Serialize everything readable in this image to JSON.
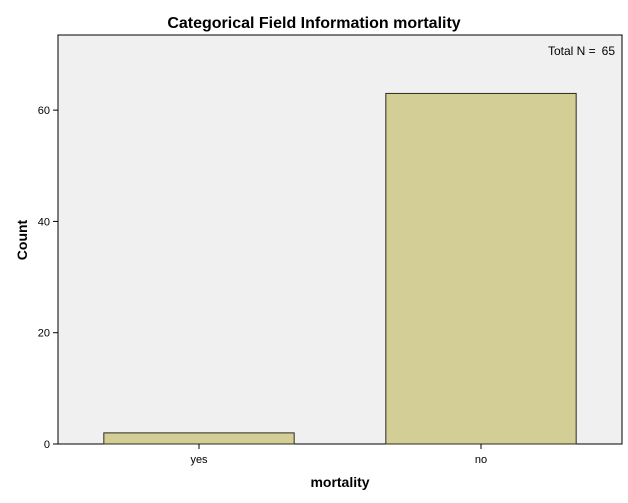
{
  "chart_data": {
    "type": "bar",
    "title": "Categorical Field Information mortality",
    "xlabel": "mortality",
    "ylabel": "Count",
    "categories": [
      "yes",
      "no"
    ],
    "values": [
      2,
      63
    ],
    "ylim": [
      0,
      73.5
    ],
    "yticks": [
      0,
      20,
      40,
      60
    ],
    "grid": false,
    "legend": "none",
    "annotation": {
      "label": "Total N =",
      "value": "65"
    },
    "colors": {
      "bar_fill": "#d3ce96",
      "bar_stroke": "#2b2b1f",
      "plot_background": "#f0f0f0",
      "axis": "#000000"
    }
  }
}
